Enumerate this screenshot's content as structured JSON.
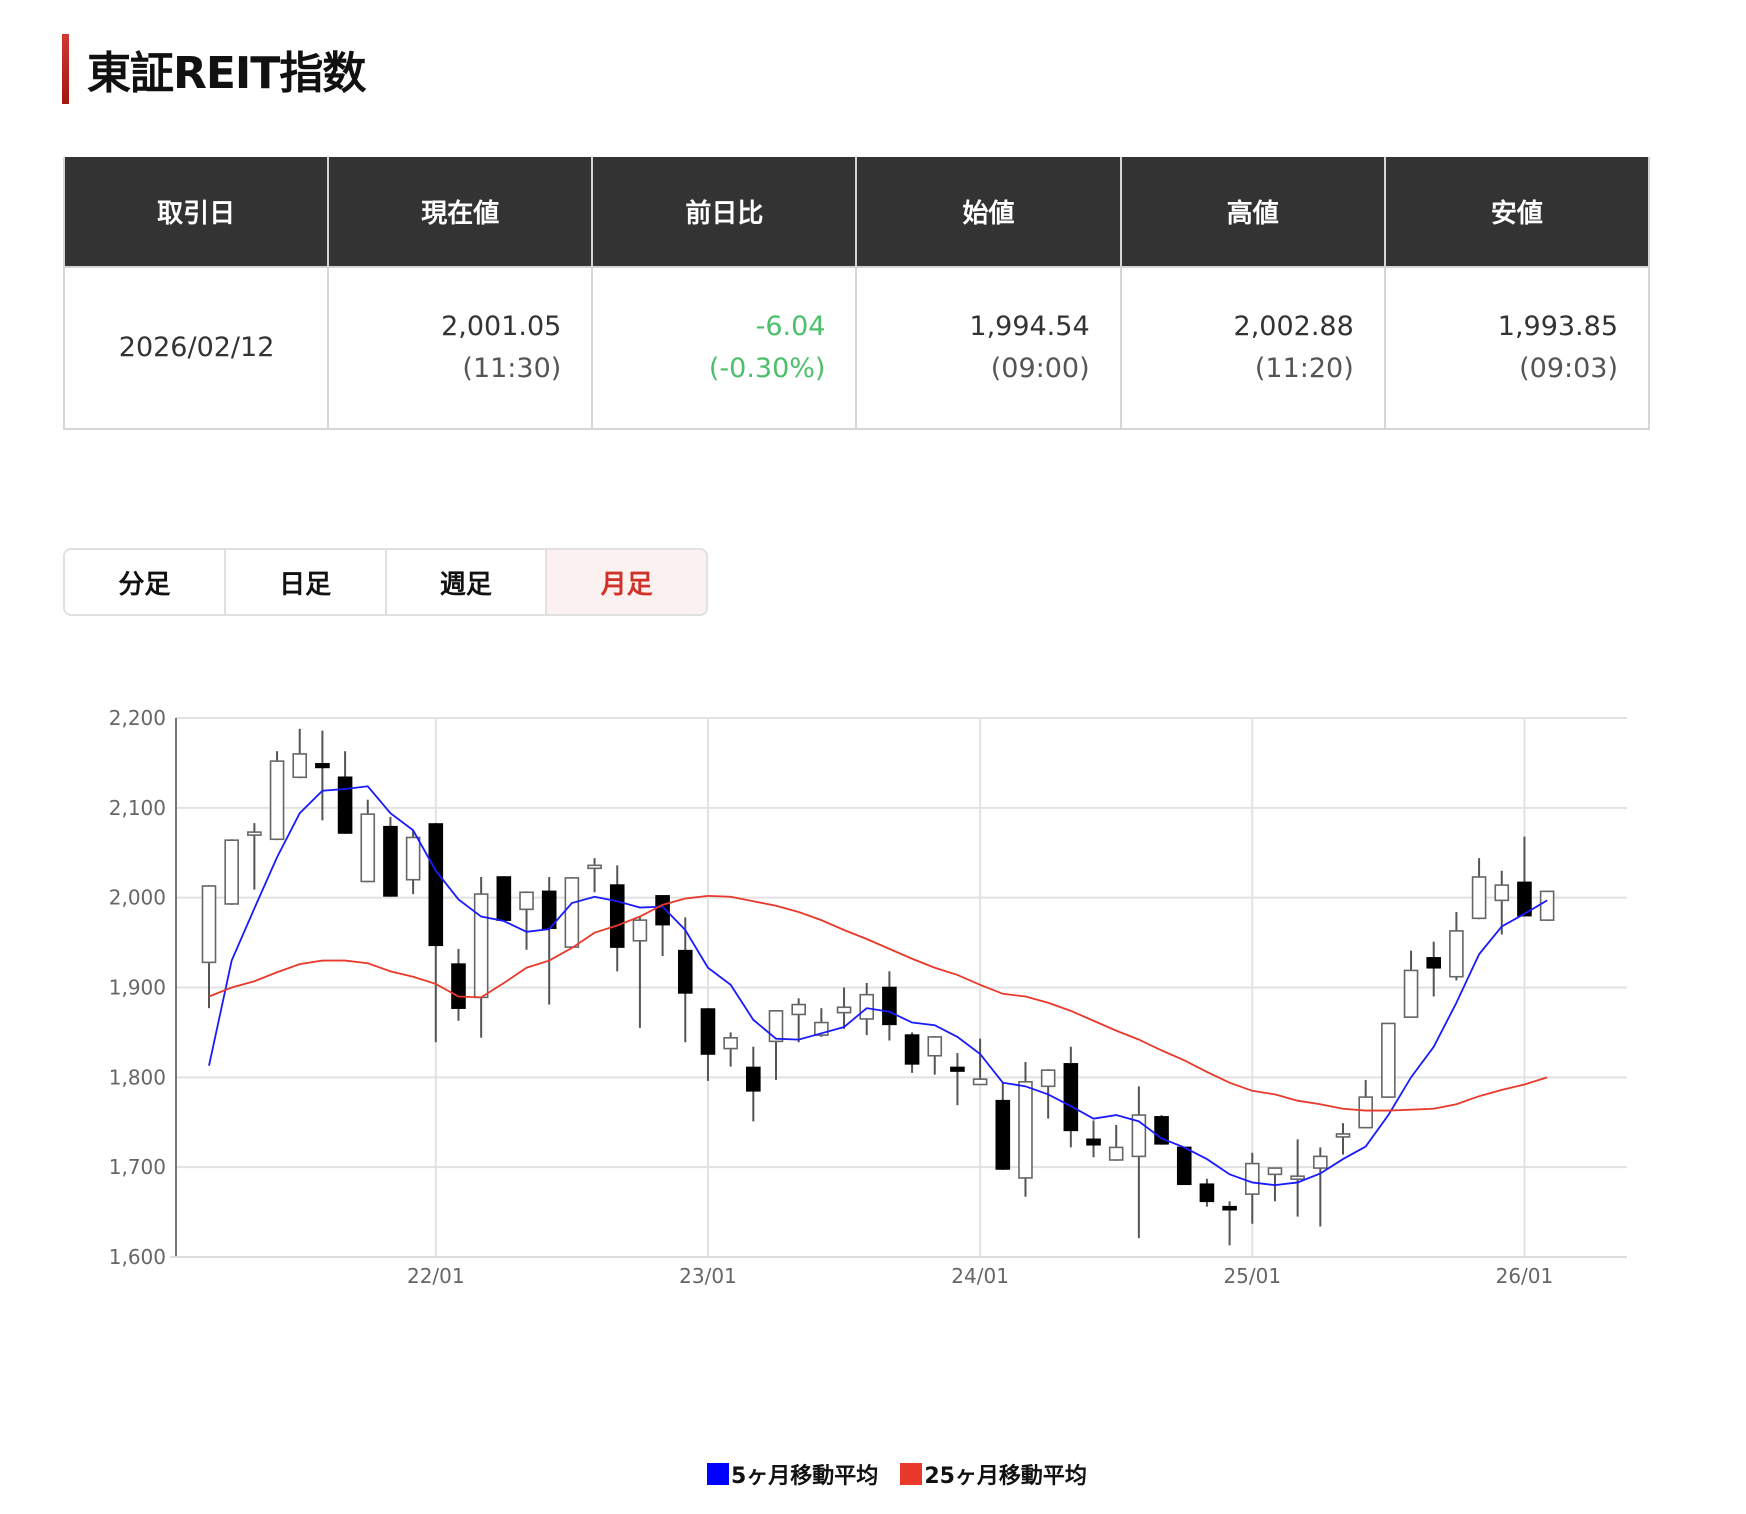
{
  "title": "東証REIT指数",
  "table": {
    "headers": [
      "取引日",
      "現在値",
      "前日比",
      "始値",
      "高値",
      "安値"
    ],
    "date": "2026/02/12",
    "current": {
      "value": "2,001.05",
      "time": "(11:30)"
    },
    "change": {
      "value": "-6.04",
      "percent": "(-0.30%)"
    },
    "open": {
      "value": "1,994.54",
      "time": "(09:00)"
    },
    "high": {
      "value": "2,002.88",
      "time": "(11:20)"
    },
    "low": {
      "value": "1,993.85",
      "time": "(09:03)"
    }
  },
  "colors": {
    "accent": "#d0322a",
    "change_negative": "#4cbf6a",
    "ma5": "#0000ff",
    "ma25": "#e8392b",
    "header_bg": "#333333"
  },
  "tabs": [
    {
      "label": "分足",
      "active": false
    },
    {
      "label": "日足",
      "active": false
    },
    {
      "label": "週足",
      "active": false
    },
    {
      "label": "月足",
      "active": true
    }
  ],
  "chart_data": {
    "type": "candlestick",
    "ylim": [
      1600,
      2200
    ],
    "yticks": [
      "1,600",
      "1,700",
      "1,800",
      "1,900",
      "2,000",
      "2,100",
      "2,200"
    ],
    "xticks": [
      "22/01",
      "23/01",
      "24/01",
      "25/01",
      "26/01"
    ],
    "grid": true,
    "legend_position": "bottom",
    "months": [
      "21/03",
      "21/04",
      "21/05",
      "21/06",
      "21/07",
      "21/08",
      "21/09",
      "21/10",
      "21/11",
      "21/12",
      "22/01",
      "22/02",
      "22/03",
      "22/04",
      "22/05",
      "22/06",
      "22/07",
      "22/08",
      "22/09",
      "22/10",
      "22/11",
      "22/12",
      "23/01",
      "23/02",
      "23/03",
      "23/04",
      "23/05",
      "23/06",
      "23/07",
      "23/08",
      "23/09",
      "23/10",
      "23/11",
      "23/12",
      "24/01",
      "24/02",
      "24/03",
      "24/04",
      "24/05",
      "24/06",
      "24/07",
      "24/08",
      "24/09",
      "24/10",
      "24/11",
      "24/12",
      "25/01",
      "25/02",
      "25/03",
      "25/04",
      "25/05",
      "25/06",
      "25/07",
      "25/08",
      "25/09",
      "25/10",
      "25/11",
      "25/12",
      "26/01",
      "26/02"
    ],
    "ohlc": [
      [
        1928,
        2014,
        1877,
        2013
      ],
      [
        1993,
        2065,
        1992,
        2064
      ],
      [
        2071,
        2083,
        2009,
        2073
      ],
      [
        2065,
        2163,
        2064,
        2152
      ],
      [
        2134,
        2188,
        2133,
        2160
      ],
      [
        2149,
        2186,
        2086,
        2145
      ],
      [
        2134,
        2163,
        2071,
        2072
      ],
      [
        2018,
        2109,
        2017,
        2093
      ],
      [
        2079,
        2090,
        2001,
        2002
      ],
      [
        2020,
        2075,
        2004,
        2067
      ],
      [
        2082,
        2083,
        1839,
        1947
      ],
      [
        1926,
        1943,
        1863,
        1877
      ],
      [
        1889,
        2023,
        1844,
        2004
      ],
      [
        2023,
        2024,
        1974,
        1975
      ],
      [
        1987,
        2007,
        1942,
        2006
      ],
      [
        2007,
        2023,
        1881,
        1966
      ],
      [
        1945,
        2023,
        1944,
        2022
      ],
      [
        2034,
        2044,
        2006,
        2036
      ],
      [
        2014,
        2036,
        1918,
        1945
      ],
      [
        1952,
        1979,
        1855,
        1975
      ],
      [
        2002,
        2002,
        1935,
        1970
      ],
      [
        1941,
        1978,
        1839,
        1894
      ],
      [
        1876,
        1877,
        1796,
        1826
      ],
      [
        1832,
        1850,
        1812,
        1844
      ],
      [
        1811,
        1834,
        1751,
        1785
      ],
      [
        1840,
        1875,
        1797,
        1874
      ],
      [
        1870,
        1888,
        1839,
        1881
      ],
      [
        1847,
        1877,
        1845,
        1861
      ],
      [
        1872,
        1900,
        1854,
        1878
      ],
      [
        1865,
        1905,
        1847,
        1892
      ],
      [
        1900,
        1918,
        1841,
        1859
      ],
      [
        1847,
        1850,
        1805,
        1815
      ],
      [
        1824,
        1846,
        1803,
        1845
      ],
      [
        1811,
        1827,
        1769,
        1807
      ],
      [
        1792,
        1843,
        1792,
        1798
      ],
      [
        1774,
        1794,
        1697,
        1698
      ],
      [
        1688,
        1817,
        1667,
        1795
      ],
      [
        1790,
        1809,
        1754,
        1808
      ],
      [
        1815,
        1834,
        1722,
        1741
      ],
      [
        1731,
        1752,
        1711,
        1725
      ],
      [
        1708,
        1747,
        1707,
        1722
      ],
      [
        1712,
        1790,
        1621,
        1758
      ],
      [
        1756,
        1758,
        1725,
        1726
      ],
      [
        1722,
        1722,
        1681,
        1681
      ],
      [
        1681,
        1687,
        1656,
        1662
      ],
      [
        1656,
        1662,
        1613,
        1654
      ],
      [
        1670,
        1716,
        1637,
        1704
      ],
      [
        1692,
        1699,
        1662,
        1699
      ],
      [
        1687,
        1731,
        1645,
        1690
      ],
      [
        1699,
        1722,
        1634,
        1712
      ],
      [
        1735,
        1749,
        1714,
        1737
      ],
      [
        1744,
        1797,
        1743,
        1778
      ],
      [
        1778,
        1860,
        1777,
        1860
      ],
      [
        1867,
        1941,
        1866,
        1919
      ],
      [
        1933,
        1951,
        1890,
        1922
      ],
      [
        1912,
        1984,
        1908,
        1963
      ],
      [
        1977,
        2044,
        1976,
        2023
      ],
      [
        1997,
        2030,
        1959,
        2014
      ],
      [
        2017,
        2068,
        1979,
        1980
      ],
      [
        1975,
        2008,
        1974,
        2007
      ]
    ],
    "series": [
      {
        "name": "5ヶ月移動平均",
        "values": [
          1813,
          1930,
          1988,
          2045,
          2094,
          2119,
          2121,
          2124,
          2094,
          2075,
          2030,
          1998,
          1979,
          1974,
          1962,
          1965,
          1994,
          2001,
          1996,
          1989,
          1990,
          1964,
          1922,
          1903,
          1864,
          1843,
          1842,
          1849,
          1856,
          1877,
          1873,
          1861,
          1858,
          1845,
          1826,
          1794,
          1790,
          1781,
          1768,
          1754,
          1758,
          1751,
          1732,
          1722,
          1709,
          1692,
          1683,
          1680,
          1683,
          1693,
          1709,
          1723,
          1758,
          1800,
          1834,
          1883,
          1937,
          1968,
          1982,
          1997
        ]
      },
      {
        "name": "25ヶ月移動平均",
        "values": [
          1890,
          1900,
          1907,
          1917,
          1926,
          1930,
          1930,
          1927,
          1918,
          1912,
          1904,
          1890,
          1889,
          1905,
          1922,
          1930,
          1944,
          1961,
          1969,
          1979,
          1992,
          1999,
          2002,
          2001,
          1996,
          1991,
          1984,
          1975,
          1964,
          1954,
          1943,
          1932,
          1922,
          1914,
          1903,
          1893,
          1890,
          1883,
          1874,
          1863,
          1852,
          1842,
          1830,
          1819,
          1806,
          1794,
          1785,
          1781,
          1774,
          1770,
          1765,
          1763,
          1763,
          1764,
          1765,
          1770,
          1779,
          1786,
          1792,
          1800
        ]
      }
    ]
  }
}
